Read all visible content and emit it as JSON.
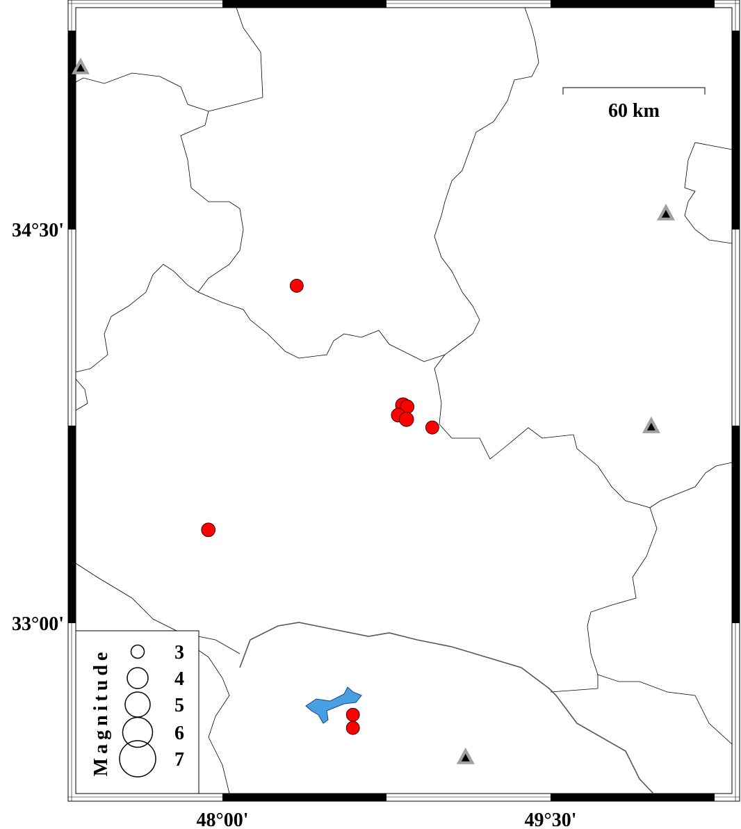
{
  "map": {
    "region": {
      "lon_min": 47.33,
      "lon_max": 50.33,
      "lat_min": 32.35,
      "lat_max": 35.345
    },
    "x_tick_labels": [
      {
        "lon": 48.0,
        "label": "48°00'"
      },
      {
        "lon": 49.5,
        "label": "49°30'"
      }
    ],
    "y_tick_labels": [
      {
        "lat": 34.5,
        "label": "34°30'"
      },
      {
        "lat": 33.0,
        "label": "33°00'"
      }
    ],
    "scale_bar": {
      "label": "60 km",
      "length_km": 60
    },
    "colors": {
      "earthquake": "#ff0000",
      "station_outer": "#a0a0a0",
      "station_inner": "#000000",
      "lake": "#4a9fe0",
      "land": "#ffffff"
    }
  },
  "earthquakes": [
    {
      "lon": 48.34,
      "lat": 34.285,
      "mag": 3.0
    },
    {
      "lon": 48.826,
      "lat": 33.83,
      "mag": 3.3
    },
    {
      "lon": 48.845,
      "lat": 33.824,
      "mag": 3.1
    },
    {
      "lon": 48.804,
      "lat": 33.792,
      "mag": 3.1
    },
    {
      "lon": 48.842,
      "lat": 33.776,
      "mag": 3.2
    },
    {
      "lon": 48.96,
      "lat": 33.745,
      "mag": 3.0
    },
    {
      "lon": 47.936,
      "lat": 33.355,
      "mag": 3.1
    },
    {
      "lon": 48.597,
      "lat": 32.65,
      "mag": 3.0
    },
    {
      "lon": 48.597,
      "lat": 32.6,
      "mag": 3.0
    }
  ],
  "stations": [
    {
      "lon": 47.352,
      "lat": 35.115
    },
    {
      "lon": 50.028,
      "lat": 34.558
    },
    {
      "lon": 49.961,
      "lat": 33.747
    },
    {
      "lon": 49.112,
      "lat": 32.486
    }
  ],
  "legend": {
    "title": "Magnitude",
    "items": [
      {
        "mag": 3,
        "label": "3"
      },
      {
        "mag": 4,
        "label": "4"
      },
      {
        "mag": 5,
        "label": "5"
      },
      {
        "mag": 6,
        "label": "6"
      },
      {
        "mag": 7,
        "label": "7"
      }
    ]
  }
}
